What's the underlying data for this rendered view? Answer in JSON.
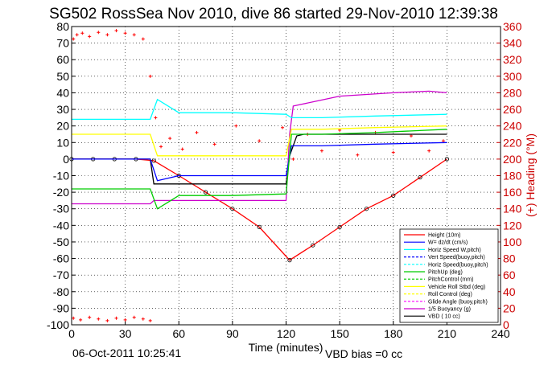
{
  "chart_data": {
    "type": "line",
    "title": "SG502 RossSea Nov 2010, dive 86 started 29-Nov-2010 12:39:38",
    "xlabel": "Time (minutes)",
    "ylabel_right": "(+) Heading (°M)",
    "footer_date": "06-Oct-2011 10:25:41",
    "footer_note": "VBD bias =0 cc",
    "xlim": [
      0,
      240
    ],
    "ylim": [
      -100,
      80
    ],
    "ylim_right": [
      0,
      360
    ],
    "x_ticks": [
      "0",
      "30",
      "60",
      "90",
      "120",
      "150",
      "180",
      "210",
      "240"
    ],
    "y_ticks": [
      "80",
      "70",
      "60",
      "50",
      "40",
      "30",
      "20",
      "10",
      "0",
      "-10",
      "-20",
      "-30",
      "-40",
      "-50",
      "-60",
      "-70",
      "-80",
      "-90",
      "-100"
    ],
    "y_right_ticks": [
      "360",
      "340",
      "320",
      "300",
      "280",
      "260",
      "240",
      "220",
      "200",
      "180",
      "160",
      "140",
      "120",
      "100",
      "80",
      "60",
      "40",
      "20",
      "0"
    ],
    "legend": [
      {
        "label": "Height (10m)",
        "color": "#ff0000",
        "dash": "solid"
      },
      {
        "label": "W= dz/dt (cm/s)",
        "color": "#0000ff",
        "dash": "solid"
      },
      {
        "label": "Horiz Speed W,pitch)",
        "color": "#00ffff",
        "dash": "solid"
      },
      {
        "label": "Vert Speed(buoy,pitch)",
        "color": "#0000ff",
        "dash": "dashed"
      },
      {
        "label": "Horiz Speed(buoy,pitch)",
        "color": "#00ffff",
        "dash": "dashed"
      },
      {
        "label": "PitchUp (deg)",
        "color": "#00cc00",
        "dash": "solid"
      },
      {
        "label": "PitchControl (mm)",
        "color": "#00cc00",
        "dash": "dashed"
      },
      {
        "label": "Vehicle Roll Stbd (deg)",
        "color": "#ffff00",
        "dash": "solid"
      },
      {
        "label": "Roll Control (deg)",
        "color": "#ffff00",
        "dash": "dashed"
      },
      {
        "label": "Glide Angle (buoy,pitch)",
        "color": "#ff00ff",
        "dash": "dashed"
      },
      {
        "label": "1/5 Buoyancy (g)",
        "color": "#cc00cc",
        "dash": "solid"
      },
      {
        "label": "VBD ( 10 cc)",
        "color": "#000000",
        "dash": "solid"
      }
    ],
    "series": [
      {
        "name": "Height (10m)",
        "color": "#ff0000",
        "x": [
          0,
          12,
          24,
          36,
          46,
          60,
          75,
          90,
          105,
          122,
          135,
          150,
          165,
          180,
          195,
          210
        ],
        "y": [
          0,
          0,
          0,
          0,
          -1,
          -10,
          -20,
          -30,
          -41,
          -61,
          -52,
          -41,
          -30,
          -22,
          -11,
          0
        ]
      },
      {
        "name": "VBD ( 10 cc)",
        "color": "#000000",
        "x": [
          0,
          44,
          46,
          120,
          122,
          126,
          130,
          210
        ],
        "y": [
          0,
          0,
          -15,
          -15,
          2,
          14,
          15,
          15
        ]
      },
      {
        "name": "1/5 Buoyancy (g)",
        "color": "#cc00cc",
        "x": [
          0,
          1,
          44,
          46,
          120,
          122,
          124,
          150,
          180,
          200,
          210
        ],
        "y": [
          -27,
          -27,
          -27,
          -25,
          -25,
          15,
          32,
          38,
          40,
          41,
          40
        ]
      },
      {
        "name": "W= dz/dt (cm/s)",
        "color": "#0000ff",
        "x": [
          0,
          44,
          48,
          60,
          90,
          120,
          123,
          140,
          170,
          210
        ],
        "y": [
          0,
          0,
          -13,
          -10,
          -10,
          -10,
          8,
          8,
          9,
          10
        ]
      },
      {
        "name": "Horiz Speed W,pitch)",
        "color": "#00ffff",
        "x": [
          0,
          44,
          48,
          60,
          90,
          120,
          123,
          140,
          170,
          210
        ],
        "y": [
          24,
          24,
          36,
          28,
          28,
          27,
          25,
          25,
          26,
          27
        ]
      },
      {
        "name": "PitchUp (deg)",
        "color": "#00cc00",
        "x": [
          0,
          44,
          48,
          60,
          90,
          120,
          123,
          140,
          170,
          210
        ],
        "y": [
          -18,
          -18,
          -30,
          -22,
          -22,
          -21,
          15,
          15,
          16,
          18
        ]
      },
      {
        "name": "Vehicle Roll Stbd (deg)",
        "color": "#ffff00",
        "x": [
          0,
          44,
          48,
          60,
          90,
          120,
          123,
          140,
          170,
          210
        ],
        "y": [
          15,
          15,
          2,
          2,
          2,
          2,
          18,
          18,
          19,
          20
        ]
      }
    ],
    "heading_points": {
      "x": [
        1,
        3,
        6,
        10,
        15,
        20,
        25,
        30,
        35,
        40,
        44,
        47,
        50,
        55,
        62,
        70,
        80,
        92,
        105,
        118,
        124,
        132,
        140,
        150,
        160,
        170,
        180,
        190,
        200,
        208
      ],
      "y": [
        345,
        350,
        352,
        348,
        353,
        350,
        355,
        352,
        350,
        345,
        300,
        250,
        215,
        225,
        212,
        232,
        218,
        240,
        222,
        238,
        200,
        230,
        210,
        235,
        205,
        232,
        208,
        228,
        210,
        222
      ]
    },
    "heading_surface_points": {
      "x": [
        1,
        5,
        10,
        15,
        20,
        25,
        30,
        35,
        40,
        44
      ],
      "y": [
        8,
        6,
        9,
        7,
        5,
        8,
        6,
        9,
        7,
        5
      ]
    }
  }
}
